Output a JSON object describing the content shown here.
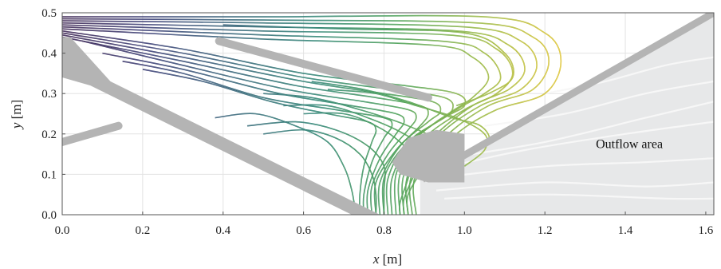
{
  "chart_data": {
    "type": "line",
    "title": "",
    "xlabel_var": "x",
    "xlabel_unit": " [m]",
    "ylabel_var": "y",
    "ylabel_unit": " [m]",
    "xlim": [
      0,
      1.62
    ],
    "ylim": [
      0,
      0.5
    ],
    "xticks": [
      "0.0",
      "0.2",
      "0.4",
      "0.6",
      "0.8",
      "1.0",
      "1.2",
      "1.4",
      "1.6"
    ],
    "yticks": [
      "0.0",
      "0.1",
      "0.2",
      "0.3",
      "0.4",
      "0.5"
    ],
    "grid": true,
    "annotations": [
      {
        "text": "Outflow area",
        "x": 1.41,
        "y": 0.175
      }
    ],
    "colors": {
      "walls": "#b4b4b4",
      "outflow_region": "#e7e8e9",
      "outflow_streaks": "#f7f7f7",
      "streamline_colormap": [
        "#2e1446",
        "#2b2f6a",
        "#26566e",
        "#1f7a6a",
        "#3f9a4a",
        "#93b437",
        "#e0c22a"
      ]
    },
    "obstacles": [
      {
        "name": "upper-wall",
        "points": [
          [
            0.0,
            0.44
          ],
          [
            0.0,
            0.34
          ],
          [
            0.07,
            0.32
          ],
          [
            0.72,
            0.0
          ],
          [
            0.79,
            0.0
          ],
          [
            0.12,
            0.33
          ],
          [
            0.02,
            0.44
          ]
        ]
      },
      {
        "name": "left-rod",
        "points": [
          [
            0.0,
            0.18
          ],
          [
            0.14,
            0.22
          ]
        ]
      },
      {
        "name": "middle-blade",
        "points": [
          [
            0.39,
            0.43
          ],
          [
            0.91,
            0.29
          ]
        ]
      },
      {
        "name": "nozzle",
        "points": [
          [
            0.82,
            0.13
          ],
          [
            0.86,
            0.19
          ],
          [
            0.93,
            0.21
          ],
          [
            1.0,
            0.2
          ],
          [
            1.0,
            0.08
          ],
          [
            0.91,
            0.08
          ],
          [
            0.84,
            0.1
          ]
        ]
      },
      {
        "name": "right-wall",
        "points": [
          [
            0.9,
            0.08
          ],
          [
            1.62,
            0.49
          ],
          [
            1.62,
            0.51
          ],
          [
            0.89,
            0.095
          ]
        ]
      }
    ],
    "outflow_region": [
      [
        0.89,
        0.0
      ],
      [
        0.89,
        0.085
      ],
      [
        1.62,
        0.49
      ],
      [
        1.62,
        0.0
      ]
    ],
    "series": [
      {
        "points": [
          [
            0.0,
            0.49
          ],
          [
            0.5,
            0.49
          ],
          [
            1.05,
            0.49
          ],
          [
            1.2,
            0.45
          ],
          [
            1.24,
            0.38
          ],
          [
            1.2,
            0.3
          ],
          [
            1.08,
            0.26
          ],
          [
            0.98,
            0.2
          ],
          [
            0.88,
            0.1
          ],
          [
            0.88,
            0.0
          ]
        ]
      },
      {
        "points": [
          [
            0.0,
            0.485
          ],
          [
            0.5,
            0.482
          ],
          [
            1.03,
            0.475
          ],
          [
            1.17,
            0.44
          ],
          [
            1.21,
            0.38
          ],
          [
            1.17,
            0.31
          ],
          [
            1.06,
            0.27
          ],
          [
            0.96,
            0.2
          ],
          [
            0.87,
            0.1
          ],
          [
            0.87,
            0.0
          ]
        ]
      },
      {
        "points": [
          [
            0.0,
            0.48
          ],
          [
            0.5,
            0.475
          ],
          [
            1.0,
            0.465
          ],
          [
            1.14,
            0.43
          ],
          [
            1.18,
            0.37
          ],
          [
            1.14,
            0.31
          ],
          [
            1.04,
            0.27
          ],
          [
            0.94,
            0.2
          ],
          [
            0.86,
            0.1
          ],
          [
            0.86,
            0.0
          ]
        ]
      },
      {
        "points": [
          [
            0.0,
            0.475
          ],
          [
            0.5,
            0.465
          ],
          [
            0.98,
            0.455
          ],
          [
            1.11,
            0.42
          ],
          [
            1.15,
            0.36
          ],
          [
            1.11,
            0.31
          ],
          [
            1.02,
            0.27
          ],
          [
            0.92,
            0.19
          ],
          [
            0.85,
            0.1
          ],
          [
            0.85,
            0.0
          ]
        ]
      },
      {
        "points": [
          [
            0.0,
            0.47
          ],
          [
            0.5,
            0.455
          ],
          [
            0.96,
            0.445
          ],
          [
            1.08,
            0.41
          ],
          [
            1.12,
            0.35
          ],
          [
            1.08,
            0.3
          ],
          [
            1.0,
            0.26
          ],
          [
            0.9,
            0.19
          ],
          [
            0.84,
            0.1
          ],
          [
            0.84,
            0.0
          ]
        ]
      },
      {
        "points": [
          [
            0.0,
            0.465
          ],
          [
            0.5,
            0.445
          ],
          [
            0.94,
            0.43
          ],
          [
            1.05,
            0.4
          ],
          [
            1.09,
            0.34
          ],
          [
            1.05,
            0.3
          ],
          [
            0.98,
            0.26
          ],
          [
            0.88,
            0.19
          ],
          [
            0.83,
            0.1
          ],
          [
            0.83,
            0.0
          ]
        ]
      },
      {
        "points": [
          [
            0.0,
            0.46
          ],
          [
            0.5,
            0.435
          ],
          [
            0.92,
            0.42
          ],
          [
            1.02,
            0.39
          ],
          [
            1.06,
            0.34
          ],
          [
            1.02,
            0.29
          ],
          [
            0.96,
            0.25
          ],
          [
            0.87,
            0.18
          ],
          [
            0.82,
            0.09
          ],
          [
            0.82,
            0.0
          ]
        ]
      },
      {
        "points": [
          [
            0.0,
            0.455
          ],
          [
            0.3,
            0.41
          ],
          [
            0.6,
            0.35
          ],
          [
            0.85,
            0.32
          ],
          [
            0.98,
            0.3
          ],
          [
            1.0,
            0.27
          ],
          [
            0.95,
            0.24
          ],
          [
            0.86,
            0.18
          ],
          [
            0.81,
            0.09
          ],
          [
            0.81,
            0.0
          ]
        ]
      },
      {
        "points": [
          [
            0.0,
            0.45
          ],
          [
            0.3,
            0.4
          ],
          [
            0.6,
            0.34
          ],
          [
            0.82,
            0.31
          ],
          [
            0.95,
            0.29
          ],
          [
            0.97,
            0.26
          ],
          [
            0.93,
            0.23
          ],
          [
            0.85,
            0.17
          ],
          [
            0.8,
            0.09
          ],
          [
            0.8,
            0.0
          ]
        ]
      },
      {
        "points": [
          [
            0.0,
            0.445
          ],
          [
            0.3,
            0.39
          ],
          [
            0.6,
            0.33
          ],
          [
            0.8,
            0.3
          ],
          [
            0.92,
            0.28
          ],
          [
            0.94,
            0.255
          ],
          [
            0.91,
            0.23
          ],
          [
            0.84,
            0.17
          ],
          [
            0.79,
            0.08
          ],
          [
            0.79,
            0.0
          ]
        ]
      },
      {
        "points": [
          [
            0.0,
            0.44
          ],
          [
            0.3,
            0.38
          ],
          [
            0.58,
            0.32
          ],
          [
            0.78,
            0.29
          ],
          [
            0.89,
            0.27
          ],
          [
            0.91,
            0.25
          ],
          [
            0.89,
            0.22
          ],
          [
            0.83,
            0.16
          ],
          [
            0.78,
            0.08
          ],
          [
            0.78,
            0.0
          ]
        ]
      },
      {
        "points": [
          [
            0.05,
            0.43
          ],
          [
            0.3,
            0.37
          ],
          [
            0.56,
            0.31
          ],
          [
            0.75,
            0.28
          ],
          [
            0.86,
            0.26
          ],
          [
            0.88,
            0.24
          ],
          [
            0.86,
            0.21
          ],
          [
            0.81,
            0.15
          ],
          [
            0.77,
            0.07
          ],
          [
            0.77,
            0.0
          ]
        ]
      },
      {
        "points": [
          [
            0.1,
            0.4
          ],
          [
            0.3,
            0.36
          ],
          [
            0.54,
            0.3
          ],
          [
            0.72,
            0.27
          ],
          [
            0.83,
            0.25
          ],
          [
            0.85,
            0.23
          ],
          [
            0.83,
            0.2
          ],
          [
            0.79,
            0.14
          ],
          [
            0.76,
            0.06
          ],
          [
            0.76,
            0.0
          ]
        ]
      },
      {
        "points": [
          [
            0.15,
            0.38
          ],
          [
            0.3,
            0.35
          ],
          [
            0.5,
            0.29
          ],
          [
            0.68,
            0.26
          ],
          [
            0.8,
            0.24
          ],
          [
            0.82,
            0.22
          ],
          [
            0.8,
            0.19
          ],
          [
            0.77,
            0.13
          ],
          [
            0.75,
            0.05
          ],
          [
            0.75,
            0.0
          ]
        ]
      },
      {
        "points": [
          [
            0.2,
            0.36
          ],
          [
            0.35,
            0.33
          ],
          [
            0.52,
            0.28
          ],
          [
            0.66,
            0.25
          ],
          [
            0.76,
            0.23
          ],
          [
            0.78,
            0.21
          ],
          [
            0.77,
            0.18
          ],
          [
            0.75,
            0.12
          ],
          [
            0.74,
            0.05
          ],
          [
            0.74,
            0.0
          ]
        ]
      },
      {
        "points": [
          [
            0.5,
            0.3
          ],
          [
            0.62,
            0.29
          ],
          [
            0.74,
            0.26
          ],
          [
            0.86,
            0.22
          ],
          [
            0.93,
            0.18
          ],
          [
            0.9,
            0.12
          ],
          [
            0.86,
            0.05
          ],
          [
            0.86,
            0.0
          ]
        ]
      },
      {
        "points": [
          [
            0.55,
            0.27
          ],
          [
            0.66,
            0.27
          ],
          [
            0.76,
            0.24
          ],
          [
            0.85,
            0.2
          ],
          [
            0.9,
            0.16
          ],
          [
            0.88,
            0.11
          ],
          [
            0.85,
            0.04
          ],
          [
            0.85,
            0.0
          ]
        ]
      },
      {
        "points": [
          [
            0.6,
            0.25
          ],
          [
            0.7,
            0.25
          ],
          [
            0.78,
            0.22
          ],
          [
            0.84,
            0.18
          ],
          [
            0.87,
            0.14
          ],
          [
            0.86,
            0.09
          ],
          [
            0.84,
            0.03
          ],
          [
            0.84,
            0.0
          ]
        ]
      },
      {
        "points": [
          [
            0.46,
            0.22
          ],
          [
            0.58,
            0.23
          ],
          [
            0.68,
            0.21
          ],
          [
            0.76,
            0.17
          ],
          [
            0.8,
            0.12
          ],
          [
            0.8,
            0.06
          ],
          [
            0.8,
            0.0
          ]
        ]
      },
      {
        "points": [
          [
            0.5,
            0.2
          ],
          [
            0.6,
            0.21
          ],
          [
            0.68,
            0.19
          ],
          [
            0.74,
            0.15
          ],
          [
            0.77,
            0.1
          ],
          [
            0.78,
            0.05
          ],
          [
            0.78,
            0.0
          ]
        ]
      },
      {
        "points": [
          [
            0.38,
            0.24
          ],
          [
            0.48,
            0.25
          ],
          [
            0.58,
            0.22
          ],
          [
            0.66,
            0.18
          ],
          [
            0.7,
            0.12
          ],
          [
            0.72,
            0.06
          ],
          [
            0.73,
            0.0
          ]
        ]
      },
      {
        "points": [
          [
            0.62,
            0.33
          ],
          [
            0.75,
            0.31
          ],
          [
            0.86,
            0.28
          ],
          [
            0.97,
            0.24
          ],
          [
            1.04,
            0.22
          ],
          [
            1.06,
            0.18
          ],
          [
            1.0,
            0.14
          ]
        ]
      },
      {
        "points": [
          [
            0.66,
            0.31
          ],
          [
            0.78,
            0.3
          ],
          [
            0.88,
            0.27
          ],
          [
            0.98,
            0.24
          ],
          [
            1.05,
            0.2
          ],
          [
            1.05,
            0.16
          ],
          [
            1.0,
            0.12
          ]
        ]
      },
      {
        "points": [
          [
            0.4,
            0.47
          ],
          [
            0.7,
            0.46
          ],
          [
            1.0,
            0.45
          ],
          [
            1.1,
            0.4
          ],
          [
            1.12,
            0.34
          ],
          [
            1.06,
            0.3
          ],
          [
            0.98,
            0.27
          ]
        ]
      }
    ],
    "outflow_streaks": [
      {
        "points": [
          [
            0.92,
            0.11
          ],
          [
            1.15,
            0.16
          ],
          [
            1.4,
            0.2
          ],
          [
            1.62,
            0.23
          ]
        ]
      },
      {
        "points": [
          [
            0.92,
            0.09
          ],
          [
            1.2,
            0.12
          ],
          [
            1.45,
            0.13
          ],
          [
            1.62,
            0.14
          ]
        ]
      },
      {
        "points": [
          [
            0.93,
            0.06
          ],
          [
            1.2,
            0.08
          ],
          [
            1.45,
            0.07
          ],
          [
            1.62,
            0.08
          ]
        ]
      },
      {
        "points": [
          [
            0.95,
            0.04
          ],
          [
            1.2,
            0.05
          ],
          [
            1.5,
            0.04
          ],
          [
            1.62,
            0.04
          ]
        ]
      },
      {
        "points": [
          [
            1.05,
            0.22
          ],
          [
            1.25,
            0.25
          ],
          [
            1.45,
            0.3
          ],
          [
            1.62,
            0.33
          ]
        ]
      },
      {
        "points": [
          [
            1.2,
            0.3
          ],
          [
            1.35,
            0.33
          ],
          [
            1.5,
            0.37
          ],
          [
            1.62,
            0.39
          ]
        ]
      },
      {
        "points": [
          [
            0.95,
            0.14
          ],
          [
            1.2,
            0.18
          ],
          [
            1.45,
            0.24
          ],
          [
            1.62,
            0.28
          ]
        ]
      }
    ]
  }
}
